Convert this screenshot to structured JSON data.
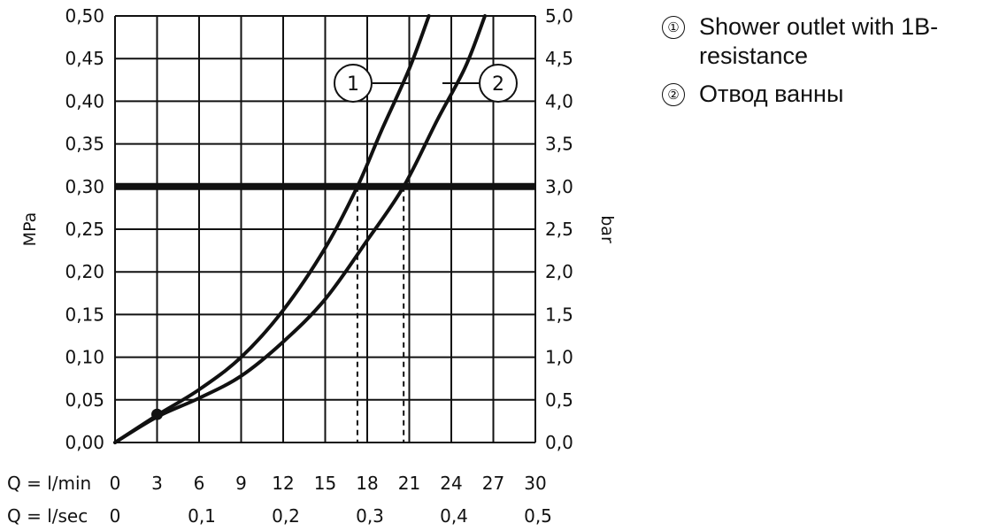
{
  "chart_data": {
    "type": "line",
    "title": "",
    "x_axis": {
      "label_primary": "Q = l/min",
      "ticks_primary": [
        "0",
        "3",
        "6",
        "9",
        "12",
        "15",
        "18",
        "21",
        "24",
        "27",
        "30"
      ],
      "label_secondary": "Q = l/sec",
      "ticks_secondary": [
        "0",
        "0,1",
        "0,2",
        "0,3",
        "0,4",
        "0,5"
      ],
      "range": [
        0,
        30
      ]
    },
    "y_axis_left": {
      "label": "MPa",
      "ticks": [
        "0,00",
        "0,05",
        "0,10",
        "0,15",
        "0,20",
        "0,25",
        "0,30",
        "0,35",
        "0,40",
        "0,45",
        "0,50"
      ],
      "range": [
        0,
        0.5
      ]
    },
    "y_axis_right": {
      "label": "bar",
      "ticks": [
        "0,0",
        "0,5",
        "1,0",
        "1,5",
        "2,0",
        "2,5",
        "3,0",
        "3,5",
        "4,0",
        "4,5",
        "5,0"
      ],
      "range": [
        0,
        5
      ]
    },
    "grid": true,
    "reference_line": {
      "y": 0.3
    },
    "marker_point": {
      "x": 3,
      "y": 0.033
    },
    "series": [
      {
        "name": "Shower outlet with 1B-resistance",
        "callout": "1",
        "crossing_x_at_reference": 17.3,
        "points": [
          [
            0,
            0
          ],
          [
            3,
            0.032
          ],
          [
            6,
            0.062
          ],
          [
            9,
            0.1
          ],
          [
            12,
            0.155
          ],
          [
            15,
            0.228
          ],
          [
            17.3,
            0.3
          ],
          [
            19,
            0.365
          ],
          [
            21,
            0.438
          ],
          [
            22.4,
            0.5
          ]
        ]
      },
      {
        "name": "Отвод ванны",
        "callout": "2",
        "crossing_x_at_reference": 20.6,
        "points": [
          [
            0,
            0
          ],
          [
            3,
            0.03
          ],
          [
            6,
            0.052
          ],
          [
            9,
            0.078
          ],
          [
            12,
            0.118
          ],
          [
            15,
            0.168
          ],
          [
            18,
            0.237
          ],
          [
            20.6,
            0.3
          ],
          [
            23,
            0.378
          ],
          [
            25,
            0.44
          ],
          [
            26.4,
            0.5
          ]
        ]
      }
    ],
    "legend": {
      "position": "top-right",
      "items": [
        {
          "marker": "①",
          "label": "Shower outlet with 1B-resistance"
        },
        {
          "marker": "②",
          "label": "Отвод ванны"
        }
      ]
    }
  }
}
